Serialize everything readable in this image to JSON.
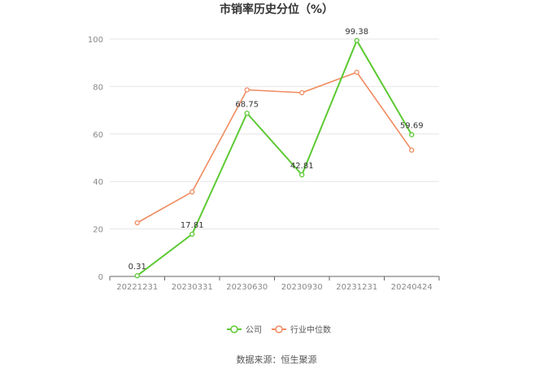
{
  "chart_data": {
    "type": "line",
    "title": "市销率历史分位（%）",
    "xlabel": "",
    "ylabel": "",
    "categories": [
      "20221231",
      "20230331",
      "20230630",
      "20230930",
      "20231231",
      "20240424"
    ],
    "ylim": [
      0,
      100
    ],
    "yticks": [
      0,
      20,
      40,
      60,
      80,
      100
    ],
    "grid": true,
    "legend_position": "bottom",
    "series": [
      {
        "name": "公司",
        "color": "#5cc932",
        "values": [
          0.31,
          17.81,
          68.75,
          42.81,
          99.38,
          59.69
        ],
        "labels": [
          "0.31",
          "17.81",
          "68.75",
          "42.81",
          "99.38",
          "59.69"
        ]
      },
      {
        "name": "行业中位数",
        "color": "#f08b60",
        "values": [
          22.6,
          35.6,
          78.6,
          77.4,
          86.0,
          53.2
        ]
      }
    ]
  },
  "source_text": "数据来源：恒生聚源"
}
